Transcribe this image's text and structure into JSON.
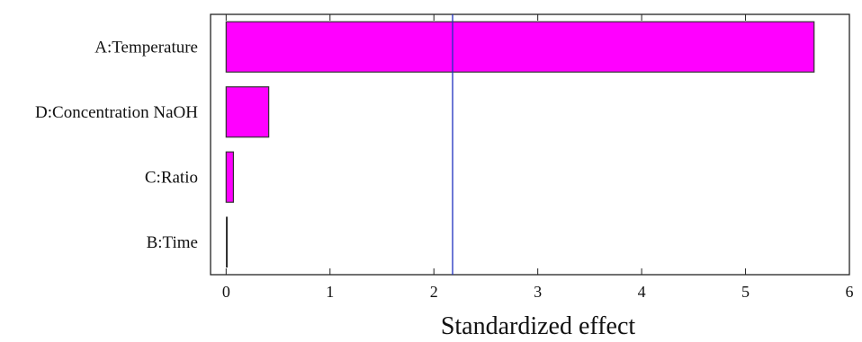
{
  "chart_data": {
    "type": "bar",
    "orientation": "horizontal",
    "categories": [
      "A:Temperature",
      "D:Concentration NaOH",
      "C:Ratio",
      "B:Time"
    ],
    "values": [
      5.66,
      0.41,
      0.07,
      0.01
    ],
    "xlabel": "Standardized effect",
    "ylabel": "",
    "xlim": [
      -0.15,
      6
    ],
    "xticks": [
      0,
      1,
      2,
      3,
      4,
      5,
      6
    ],
    "reference_line": 2.18,
    "colors": {
      "bar_fill": "#ff00ff",
      "bar_stroke": "#333333",
      "reference_line": "#1f2fbf",
      "axes": "#222222"
    },
    "grid": false,
    "legend": "none"
  }
}
